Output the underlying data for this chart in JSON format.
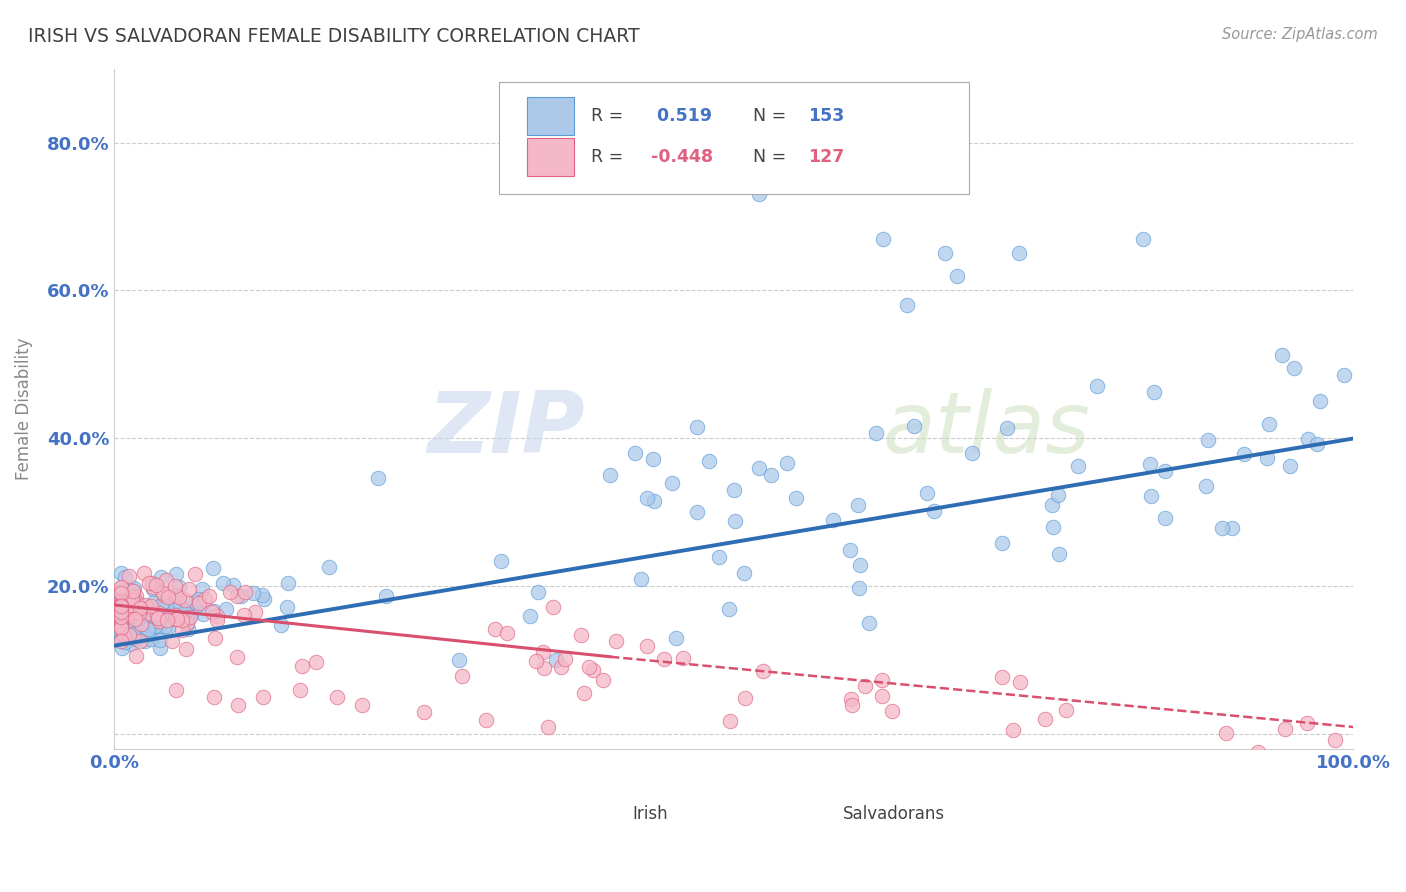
{
  "title": "IRISH VS SALVADORAN FEMALE DISABILITY CORRELATION CHART",
  "source_text": "Source: ZipAtlas.com",
  "ylabel": "Female Disability",
  "xlim": [
    0.0,
    1.0
  ],
  "ylim": [
    -0.02,
    0.9
  ],
  "yticks": [
    0.0,
    0.2,
    0.4,
    0.6,
    0.8
  ],
  "ytick_labels": [
    "",
    "20.0%",
    "40.0%",
    "60.0%",
    "80.0%"
  ],
  "xticks": [
    0.0,
    0.2,
    0.4,
    0.6,
    0.8,
    1.0
  ],
  "xtick_labels": [
    "0.0%",
    "",
    "",
    "",
    "",
    "100.0%"
  ],
  "irish_R": 0.519,
  "irish_N": 153,
  "salva_R": -0.448,
  "salva_N": 127,
  "irish_color": "#adc9ea",
  "irish_edge_color": "#5b9bd5",
  "salva_color": "#f4b8c8",
  "salva_edge_color": "#e06080",
  "irish_line_color": "#2e6db4",
  "salva_line_color": "#d94f6e",
  "legend_label_irish": "Irish",
  "legend_label_salva": "Salvadorans",
  "watermark_zip": "ZIP",
  "watermark_atlas": "atlas",
  "background_color": "#ffffff",
  "grid_color": "#cccccc",
  "title_color": "#404040",
  "axis_label_color": "#4472c4",
  "tick_label_color": "#4472c4",
  "irish_line_x0": 0.0,
  "irish_line_x1": 1.0,
  "irish_line_y0": 0.12,
  "irish_line_y1": 0.4,
  "salva_line_solid_x0": 0.0,
  "salva_line_solid_x1": 0.4,
  "salva_line_solid_y0": 0.175,
  "salva_line_solid_y1": 0.105,
  "salva_line_dash_x0": 0.4,
  "salva_line_dash_x1": 1.0,
  "salva_line_dash_y0": 0.105,
  "salva_line_dash_y1": 0.01
}
